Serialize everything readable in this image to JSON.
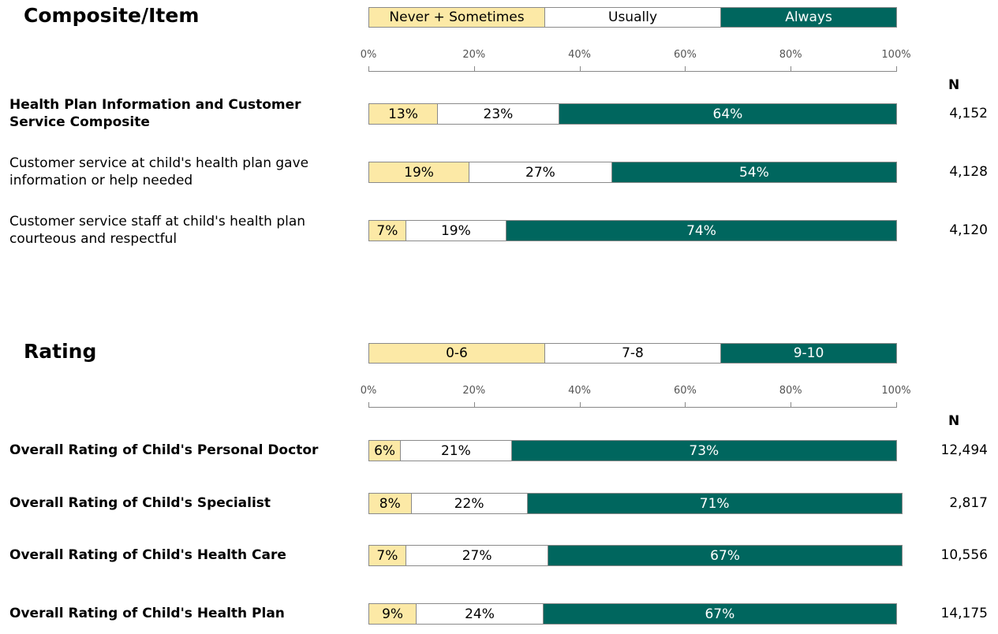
{
  "chart_data": [
    {
      "type": "bar",
      "title": "Composite/Item",
      "categories": [
        "Health Plan Information and Customer Service Composite",
        "Customer service at child's health plan gave information or help needed",
        "Customer service staff at child's health plan courteous and respectful"
      ],
      "category_bold": [
        true,
        false,
        false
      ],
      "series": [
        {
          "name": "Never + Sometimes",
          "color": "#fce9a6",
          "label_color": "#000000",
          "values": [
            13,
            19,
            7
          ],
          "value_labels": [
            "13%",
            "19%",
            "7%"
          ]
        },
        {
          "name": "Usually",
          "color": "#ffffff",
          "label_color": "#000000",
          "values": [
            23,
            27,
            19
          ],
          "value_labels": [
            "23%",
            "27%",
            "19%"
          ]
        },
        {
          "name": "Always",
          "color": "#00665e",
          "label_color": "#ffffff",
          "values": [
            64,
            54,
            74
          ],
          "value_labels": [
            "64%",
            "54%",
            "74%"
          ]
        }
      ],
      "xlim": [
        0,
        100
      ],
      "xticks": [
        {
          "value": 0,
          "label": "0%"
        },
        {
          "value": 20,
          "label": "20%"
        },
        {
          "value": 40,
          "label": "40%"
        },
        {
          "value": 60,
          "label": "60%"
        },
        {
          "value": 80,
          "label": "80%"
        },
        {
          "value": 100,
          "label": "100%"
        }
      ],
      "n_title": "N",
      "n_values": [
        4152,
        4128,
        4120
      ],
      "n_value_labels": [
        "4,152",
        "4,128",
        "4,120"
      ]
    },
    {
      "type": "bar",
      "title": "Rating",
      "categories": [
        "Overall Rating of Child's Personal Doctor",
        "Overall Rating of Child's Specialist",
        "Overall Rating of Child's Health Care",
        "Overall Rating of Child's Health Plan"
      ],
      "category_bold": [
        true,
        true,
        true,
        true
      ],
      "series": [
        {
          "name": "0-6",
          "color": "#fce9a6",
          "label_color": "#000000",
          "values": [
            6,
            8,
            7,
            9
          ],
          "value_labels": [
            "6%",
            "8%",
            "7%",
            "9%"
          ]
        },
        {
          "name": "7-8",
          "color": "#ffffff",
          "label_color": "#000000",
          "values": [
            21,
            22,
            27,
            24
          ],
          "value_labels": [
            "21%",
            "22%",
            "27%",
            "24%"
          ]
        },
        {
          "name": "9-10",
          "color": "#00665e",
          "label_color": "#ffffff",
          "values": [
            73,
            71,
            67,
            67
          ],
          "value_labels": [
            "73%",
            "71%",
            "67%",
            "67%"
          ]
        }
      ],
      "xlim": [
        0,
        100
      ],
      "xticks": [
        {
          "value": 0,
          "label": "0%"
        },
        {
          "value": 20,
          "label": "20%"
        },
        {
          "value": 40,
          "label": "40%"
        },
        {
          "value": 60,
          "label": "60%"
        },
        {
          "value": 80,
          "label": "80%"
        },
        {
          "value": 100,
          "label": "100%"
        }
      ],
      "n_title": "N",
      "n_values": [
        12494,
        2817,
        10556,
        14175
      ],
      "n_value_labels": [
        "12,494",
        "2,817",
        "10,556",
        "14,175"
      ]
    }
  ]
}
